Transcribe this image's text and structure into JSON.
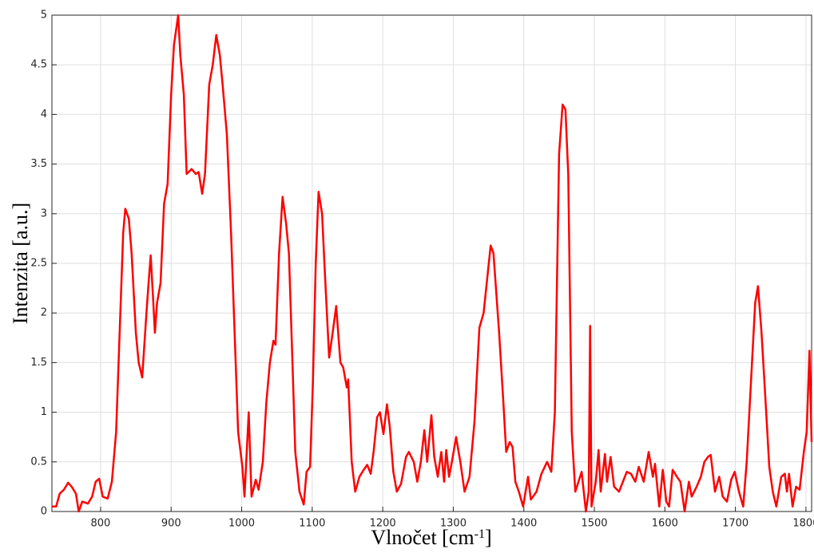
{
  "chart_data": {
    "type": "line",
    "x_label": [
      "Vlnočet [cm",
      "-1",
      "]"
    ],
    "y_label": "Intenzita [a.u.]",
    "x": [
      731,
      737,
      742,
      748,
      754,
      759,
      765,
      769,
      774,
      782,
      788,
      793,
      798,
      803,
      810,
      816,
      822,
      827,
      832,
      835,
      840,
      844,
      850,
      854,
      859,
      865,
      868,
      871,
      874,
      877,
      880,
      885,
      890,
      895,
      900,
      904,
      910,
      913,
      918,
      922,
      929,
      935,
      939,
      944,
      948,
      954,
      959,
      964,
      969,
      973,
      979,
      985,
      990,
      995,
      1001,
      1004,
      1010,
      1014,
      1020,
      1024,
      1030,
      1035,
      1040,
      1045,
      1048,
      1053,
      1058,
      1063,
      1067,
      1072,
      1076,
      1082,
      1088,
      1092,
      1097,
      1101,
      1105,
      1109,
      1114,
      1118,
      1124,
      1129,
      1134,
      1140,
      1144,
      1149,
      1151,
      1156,
      1161,
      1167,
      1173,
      1178,
      1183,
      1187,
      1192,
      1196,
      1201,
      1206,
      1210,
      1215,
      1220,
      1226,
      1233,
      1237,
      1244,
      1249,
      1254,
      1259,
      1263,
      1269,
      1273,
      1278,
      1283,
      1287,
      1290,
      1294,
      1298,
      1304,
      1310,
      1316,
      1323,
      1330,
      1337,
      1343,
      1353,
      1357,
      1365,
      1371,
      1375,
      1380,
      1384,
      1388,
      1393,
      1399,
      1406,
      1410,
      1418,
      1425,
      1433,
      1439,
      1444,
      1450,
      1455,
      1459,
      1463,
      1468,
      1473,
      1482,
      1488,
      1492,
      1494,
      1496,
      1502,
      1506,
      1509,
      1515,
      1518,
      1523,
      1528,
      1535,
      1546,
      1552,
      1558,
      1563,
      1570,
      1577,
      1583,
      1586,
      1592,
      1597,
      1602,
      1606,
      1611,
      1617,
      1622,
      1628,
      1634,
      1638,
      1645,
      1651,
      1656,
      1661,
      1665,
      1671,
      1677,
      1682,
      1688,
      1694,
      1699,
      1705,
      1711,
      1716,
      1722,
      1728,
      1732,
      1737,
      1742,
      1748,
      1753,
      1758,
      1765,
      1770,
      1773,
      1776,
      1781,
      1786,
      1791,
      1797,
      1801,
      1805,
      1808
    ],
    "values": [
      0.05,
      0.05,
      0.18,
      0.22,
      0.29,
      0.25,
      0.18,
      0.0,
      0.1,
      0.08,
      0.15,
      0.3,
      0.33,
      0.15,
      0.13,
      0.3,
      0.8,
      1.8,
      2.8,
      3.05,
      2.95,
      2.6,
      1.8,
      1.5,
      1.35,
      2.0,
      2.3,
      2.58,
      2.2,
      1.8,
      2.1,
      2.3,
      3.1,
      3.3,
      4.2,
      4.7,
      5.0,
      4.6,
      4.2,
      3.4,
      3.45,
      3.4,
      3.42,
      3.2,
      3.4,
      4.3,
      4.5,
      4.8,
      4.6,
      4.3,
      3.8,
      2.8,
      1.8,
      0.8,
      0.45,
      0.15,
      1.0,
      0.15,
      0.32,
      0.22,
      0.5,
      1.1,
      1.5,
      1.72,
      1.68,
      2.6,
      3.17,
      2.9,
      2.6,
      1.5,
      0.6,
      0.2,
      0.07,
      0.4,
      0.45,
      1.3,
      2.5,
      3.22,
      3.0,
      2.4,
      1.55,
      1.8,
      2.07,
      1.5,
      1.45,
      1.25,
      1.33,
      0.5,
      0.2,
      0.35,
      0.42,
      0.47,
      0.38,
      0.6,
      0.95,
      1.0,
      0.78,
      1.08,
      0.85,
      0.4,
      0.2,
      0.28,
      0.55,
      0.6,
      0.5,
      0.3,
      0.5,
      0.82,
      0.5,
      0.97,
      0.55,
      0.35,
      0.6,
      0.3,
      0.62,
      0.35,
      0.5,
      0.75,
      0.5,
      0.2,
      0.35,
      0.9,
      1.85,
      2.0,
      2.68,
      2.6,
      1.8,
      1.1,
      0.6,
      0.7,
      0.65,
      0.3,
      0.2,
      0.05,
      0.35,
      0.12,
      0.2,
      0.38,
      0.5,
      0.4,
      1.0,
      3.6,
      4.1,
      4.05,
      3.4,
      0.8,
      0.2,
      0.4,
      0.0,
      0.2,
      1.87,
      0.05,
      0.3,
      0.62,
      0.2,
      0.58,
      0.3,
      0.55,
      0.25,
      0.2,
      0.4,
      0.38,
      0.3,
      0.45,
      0.3,
      0.6,
      0.35,
      0.48,
      0.05,
      0.42,
      0.1,
      0.05,
      0.42,
      0.35,
      0.3,
      0.0,
      0.3,
      0.15,
      0.25,
      0.35,
      0.5,
      0.55,
      0.57,
      0.2,
      0.35,
      0.15,
      0.1,
      0.32,
      0.4,
      0.2,
      0.05,
      0.5,
      1.3,
      2.1,
      2.27,
      1.8,
      1.2,
      0.45,
      0.2,
      0.05,
      0.35,
      0.38,
      0.2,
      0.38,
      0.05,
      0.25,
      0.22,
      0.6,
      0.8,
      1.62,
      0.7
    ],
    "color": "#ff0000",
    "xlim": [
      731,
      1808
    ],
    "ylim": [
      0,
      5
    ],
    "xticks": [
      800,
      900,
      1000,
      1100,
      1200,
      1300,
      1400,
      1500,
      1600,
      1700,
      1800
    ],
    "yticks": [
      0,
      0.5,
      1,
      1.5,
      2,
      2.5,
      3,
      3.5,
      4,
      4.5,
      5
    ],
    "grid": true
  }
}
